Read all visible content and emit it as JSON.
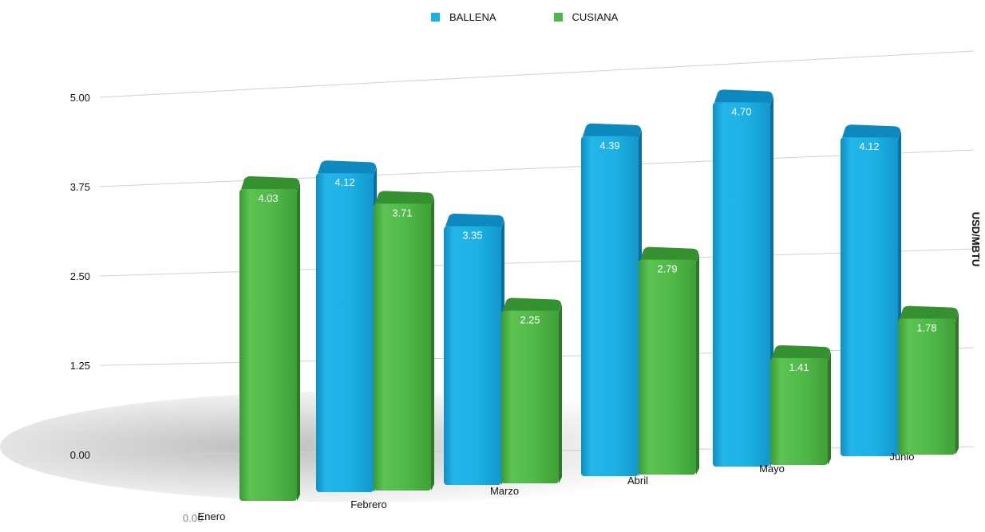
{
  "chart_data": {
    "type": "bar",
    "title": "",
    "xlabel": "",
    "ylabel": "USD/MBTU",
    "categories": [
      "Enero",
      "Febrero",
      "Marzo",
      "Abril",
      "Mayo",
      "Junio"
    ],
    "series": [
      {
        "name": "BALLENA",
        "color": "#1cb0e4",
        "values": [
          0.0,
          4.12,
          3.35,
          4.39,
          4.7,
          4.12
        ],
        "labels": [
          "0.00",
          "4.12",
          "3.35",
          "4.39",
          "4.70",
          "4.12"
        ]
      },
      {
        "name": "CUSIANA",
        "color": "#4fb847",
        "values": [
          4.03,
          3.71,
          2.25,
          2.79,
          1.41,
          1.78
        ],
        "labels": [
          "4.03",
          "3.71",
          "2.25",
          "2.79",
          "1.41",
          "1.78"
        ]
      }
    ],
    "yticks": [
      "0.00",
      "1.25",
      "2.50",
      "3.75",
      "5.00"
    ],
    "ylim": [
      0,
      5
    ],
    "grid": true,
    "legend": "top-center"
  }
}
